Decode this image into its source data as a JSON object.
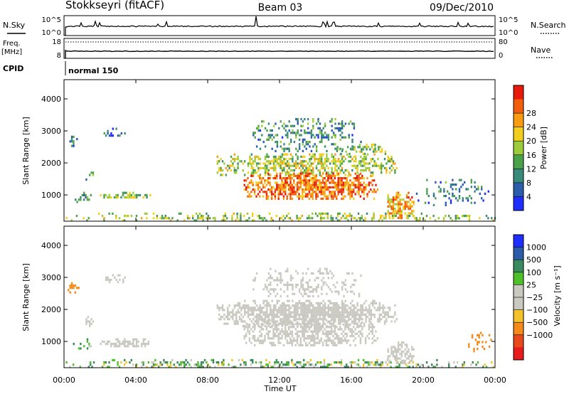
{
  "header": {
    "station": "Stokkseyri (fitACF)",
    "beam": "Beam 03",
    "date": "09/Dec/2010"
  },
  "strip": {
    "nsky_label": "N.Sky",
    "nsky_top": "10^5",
    "nsky_bottom": "10^0",
    "nsearch_label": "N.Search",
    "freq_label": "Freq.",
    "freq_unit": "[MHz]",
    "freq_top": "18",
    "freq_bottom": "8",
    "nave_top": "80",
    "nave_bottom": "0",
    "nave_label": "Nave",
    "cpid_label": "CPID",
    "cpid_value": "normal 150"
  },
  "colorbars": {
    "power": {
      "title": "Power [dB]",
      "ticks": [
        "4",
        "8",
        "12",
        "16",
        "20",
        "24",
        "28"
      ],
      "colors": [
        "#1f2dff",
        "#2b5dab",
        "#3a8a7b",
        "#4ba24b",
        "#9ccc3c",
        "#f2cf1e",
        "#f89d12",
        "#f25e0c",
        "#e81a0c"
      ]
    },
    "velocity": {
      "title": "Velocity [m s⁻¹]",
      "ticks": [
        "1000",
        "500",
        "100",
        "25",
        "−25",
        "−100",
        "−500",
        "−1000"
      ],
      "colors": [
        "#1f2dff",
        "#2c5ba8",
        "#3a8a5f",
        "#4fbf2a",
        "#c9c9c1",
        "#c9c9c1",
        "#f4c22a",
        "#f58a1a",
        "#e8481a",
        "#e81c1c"
      ]
    }
  },
  "axes": {
    "ylabel": "Slant Range [km]",
    "xlabel": "Time UT",
    "yticks": [
      1000,
      2000,
      3000,
      4000
    ],
    "xticks": [
      "00:00",
      "04:00",
      "08:00",
      "12:00",
      "16:00",
      "20:00",
      "00:00"
    ]
  },
  "chart_data": [
    {
      "type": "heatmap",
      "name": "power",
      "xlabel": "Time UT",
      "ylabel": "Slant Range [km]",
      "xlim": [
        0,
        24
      ],
      "ylim": [
        180,
        4600
      ],
      "colorbar": "Power [dB]",
      "clim": [
        0,
        30
      ],
      "regions": [
        {
          "t0": 0.0,
          "t1": 24.0,
          "r0": 180,
          "r1": 450,
          "value": 15,
          "density": 0.45
        },
        {
          "t0": 0.2,
          "t1": 0.8,
          "r0": 2550,
          "r1": 2850,
          "value": 8,
          "density": 0.55
        },
        {
          "t0": 0.5,
          "t1": 1.5,
          "r0": 800,
          "r1": 1100,
          "value": 9,
          "density": 0.35
        },
        {
          "t0": 1.1,
          "t1": 1.7,
          "r0": 1500,
          "r1": 1800,
          "value": 8,
          "density": 0.4
        },
        {
          "t0": 2.0,
          "t1": 4.8,
          "r0": 900,
          "r1": 1100,
          "value": 14,
          "density": 0.75
        },
        {
          "t0": 2.2,
          "t1": 3.5,
          "r0": 2850,
          "r1": 3100,
          "value": 6,
          "density": 0.4
        },
        {
          "t0": 8.5,
          "t1": 18.5,
          "r0": 1600,
          "r1": 2300,
          "value": 15,
          "density": 0.7
        },
        {
          "t0": 10.0,
          "t1": 17.5,
          "r0": 850,
          "r1": 1700,
          "value": 24,
          "density": 0.85
        },
        {
          "t0": 10.5,
          "t1": 16.5,
          "r0": 2400,
          "r1": 3400,
          "value": 9,
          "density": 0.35
        },
        {
          "t0": 15.0,
          "t1": 18.0,
          "r0": 2300,
          "r1": 2600,
          "value": 14,
          "density": 0.6
        },
        {
          "t0": 18.0,
          "t1": 19.5,
          "r0": 300,
          "r1": 1100,
          "value": 21,
          "density": 0.75
        },
        {
          "t0": 19.5,
          "t1": 23.8,
          "r0": 700,
          "r1": 1500,
          "value": 8,
          "density": 0.22
        }
      ]
    },
    {
      "type": "heatmap",
      "name": "velocity",
      "xlabel": "Time UT",
      "ylabel": "Slant Range [km]",
      "xlim": [
        0,
        24
      ],
      "ylim": [
        180,
        4600
      ],
      "colorbar": "Velocity [m s⁻¹]",
      "clim": [
        -1000,
        1000
      ],
      "regions": [
        {
          "t0": 0.0,
          "t1": 24.0,
          "r0": 180,
          "r1": 450,
          "value": 60,
          "density": 0.5
        },
        {
          "t0": 0.2,
          "t1": 0.8,
          "r0": 2550,
          "r1": 2850,
          "value": -300,
          "density": 0.75
        },
        {
          "t0": 0.5,
          "t1": 1.5,
          "r0": 800,
          "r1": 1100,
          "value": 150,
          "density": 0.35
        },
        {
          "t0": 1.1,
          "t1": 1.7,
          "r0": 1500,
          "r1": 1800,
          "value": 0,
          "density": 0.45
        },
        {
          "t0": 2.0,
          "t1": 4.8,
          "r0": 850,
          "r1": 1100,
          "value": 0,
          "density": 0.8
        },
        {
          "t0": 2.2,
          "t1": 3.5,
          "r0": 2850,
          "r1": 3100,
          "value": 0,
          "density": 0.45
        },
        {
          "t0": 8.5,
          "t1": 18.5,
          "r0": 1500,
          "r1": 2300,
          "value": 0,
          "density": 0.9
        },
        {
          "t0": 10.0,
          "t1": 17.5,
          "r0": 850,
          "r1": 1700,
          "value": 0,
          "density": 0.7
        },
        {
          "t0": 10.5,
          "t1": 16.5,
          "r0": 2400,
          "r1": 3300,
          "value": 0,
          "density": 0.35
        },
        {
          "t0": 18.0,
          "t1": 19.5,
          "r0": 300,
          "r1": 1000,
          "value": 0,
          "density": 0.8
        },
        {
          "t0": 22.5,
          "t1": 23.8,
          "r0": 700,
          "r1": 1300,
          "value": -250,
          "density": 0.3
        }
      ]
    }
  ]
}
